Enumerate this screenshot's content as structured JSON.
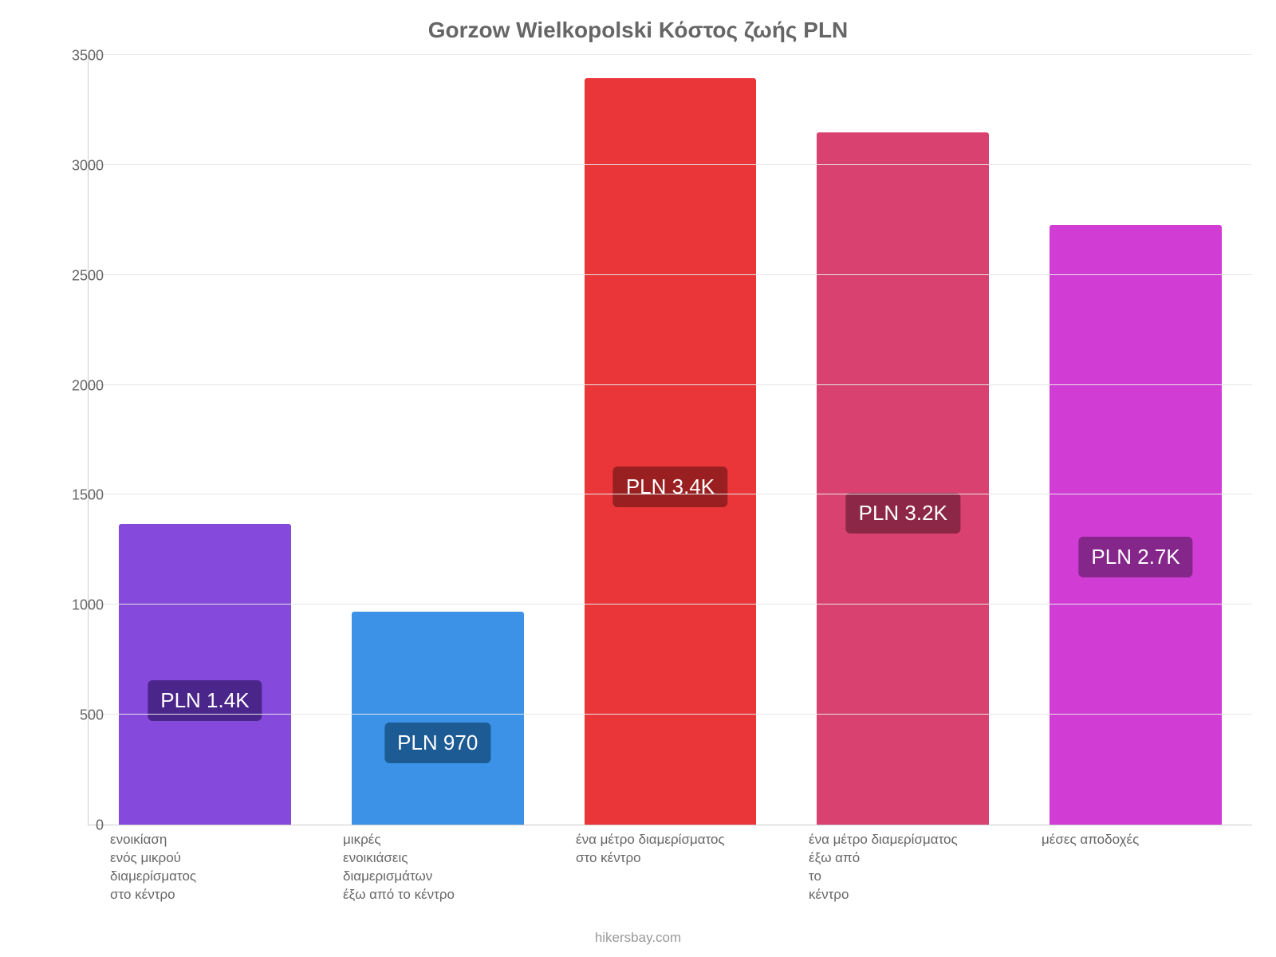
{
  "chart": {
    "type": "bar",
    "title": "Gorzow Wielkopolski Κόστος ζωής PLN",
    "title_color": "#666666",
    "title_fontsize": 28,
    "background_color": "#ffffff",
    "plot_background": "#ffffff",
    "grid_color": "#e6e6e6",
    "axis_color": "#cccccc",
    "tick_color": "#666666",
    "tick_fontsize": 18,
    "xlabel_fontsize": 17,
    "xlabel_color": "#666666",
    "value_label_fontsize": 26,
    "value_label_text_color": "#ffffff",
    "bar_width_ratio": 0.74,
    "ylim": [
      0,
      3500
    ],
    "yticks": [
      0,
      500,
      1000,
      1500,
      2000,
      2500,
      3000,
      3500
    ],
    "ytick_labels": [
      "0",
      "500",
      "1000",
      "1500",
      "2000",
      "2500",
      "3000",
      "3500"
    ],
    "categories": [
      "ενοικίαση\nενός μικρού\nδιαμερίσματος\nστο κέντρο",
      "μικρές\nενοικιάσεις\nδιαμερισμάτων\nέξω από το κέντρο",
      "ένα μέτρο διαμερίσματος\nστο κέντρο",
      "ένα μέτρο διαμερίσματος\nέξω από\nτο\nκέντρο",
      "μέσες αποδοχές"
    ],
    "values": [
      1370,
      970,
      3400,
      3150,
      2730
    ],
    "value_labels": [
      "PLN 1.4K",
      "PLN 970",
      "PLN 3.4K",
      "PLN 3.2K",
      "PLN 2.7K"
    ],
    "bar_colors": [
      "#8549dc",
      "#3c92e6",
      "#eb3639",
      "#d94270",
      "#d13cd4"
    ],
    "value_label_bg": [
      "#4b268a",
      "#1d5b94",
      "#9a1f20",
      "#8c2747",
      "#84268a"
    ],
    "attribution": "hikersbay.com",
    "attribution_color": "#999999",
    "attribution_fontsize": 17
  }
}
